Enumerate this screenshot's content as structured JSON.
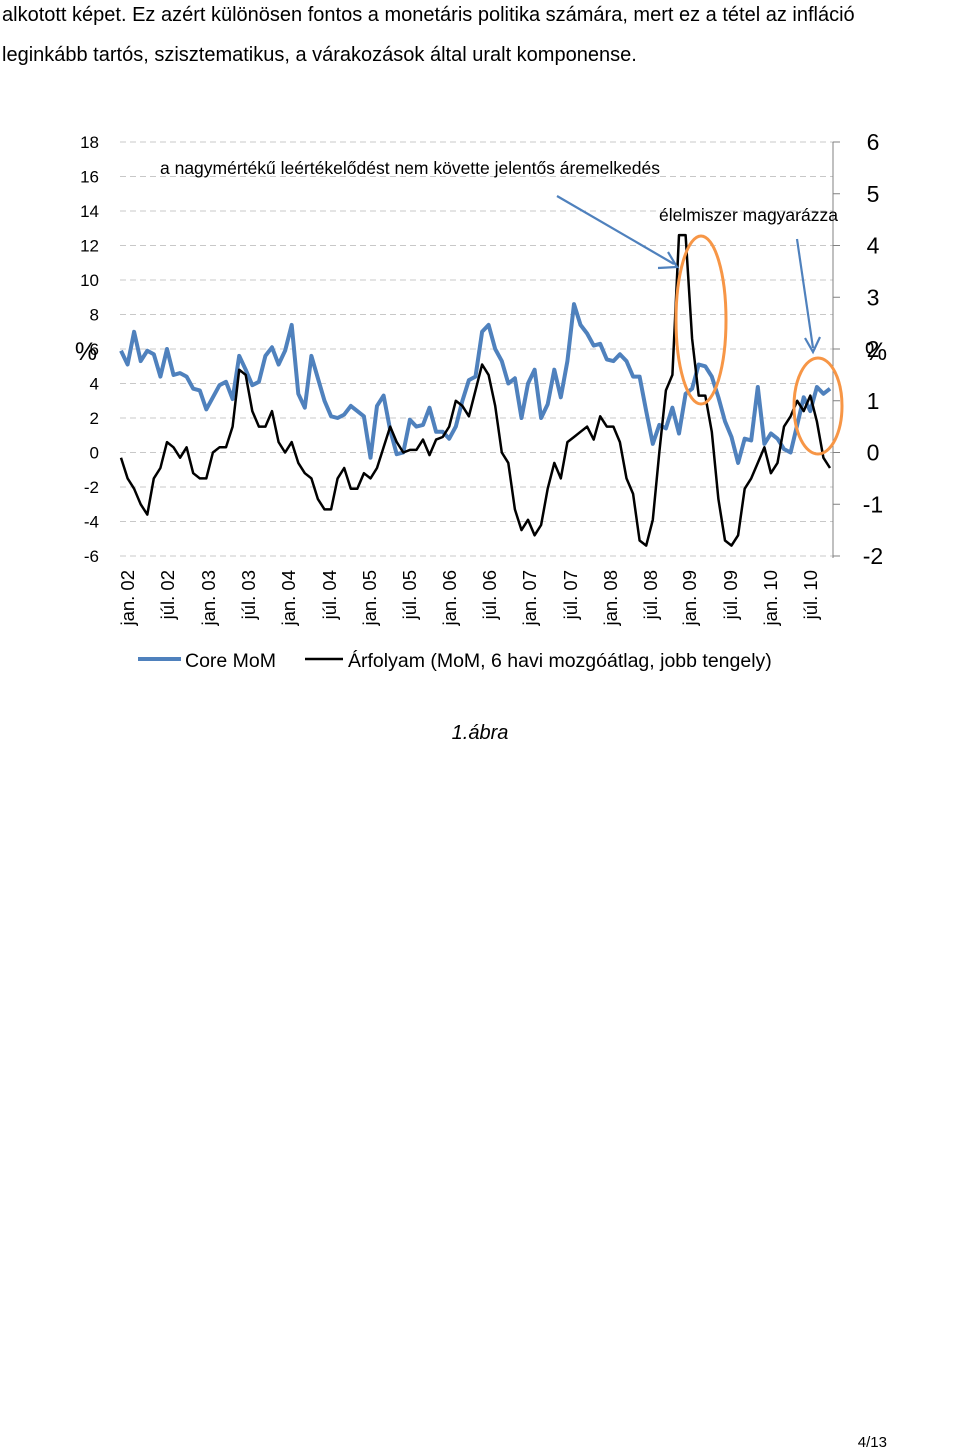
{
  "document": {
    "paragraph_line1": "alkotott képet. Ez azért különösen fontos a monetáris politika számára, mert ez a tétel az infláció",
    "paragraph_line2": "leginkább tartós, szisztematikus, a várakozások által uralt komponense.",
    "figure_caption": "1.ábra",
    "page_number": "4/13"
  },
  "chart_data": {
    "type": "line",
    "title": "",
    "xlabel": "",
    "ylabel_left": "%",
    "ylabel_right": "%",
    "ylim_left": [
      -6,
      18
    ],
    "ylim_right": [
      -2,
      6
    ],
    "yticks_left": [
      "18",
      "16",
      "14",
      "12",
      "10",
      "8",
      "6",
      "4",
      "2",
      "0",
      "-2",
      "-4",
      "-6"
    ],
    "yticks_right": [
      "6",
      "5",
      "4",
      "3",
      "2",
      "1",
      "0",
      "-1",
      "-2"
    ],
    "grid": "horizontal dashed",
    "legend_position": "bottom",
    "x_tick_labels": [
      "jan. 02",
      "júl. 02",
      "jan. 03",
      "júl. 03",
      "jan. 04",
      "júl. 04",
      "jan. 05",
      "júl. 05",
      "jan. 06",
      "júl. 06",
      "jan. 07",
      "júl. 07",
      "jan. 08",
      "júl. 08",
      "jan. 09",
      "júl. 09",
      "jan. 10",
      "júl. 10"
    ],
    "annotations": [
      {
        "text": "a nagymértékű leértékelődést nem követte jelentős áremelkedés",
        "points_to": "jan. 09"
      },
      {
        "text": "élelmiszer magyarázza",
        "points_to": "júl. 10"
      }
    ],
    "series": [
      {
        "name": "Core MoM",
        "axis": "left",
        "color": "#4F81BD",
        "values": [
          5.9,
          5.1,
          7.0,
          5.3,
          5.9,
          5.7,
          4.4,
          6.0,
          4.5,
          4.6,
          4.4,
          3.7,
          3.6,
          2.5,
          3.2,
          3.9,
          4.1,
          3.1,
          5.6,
          4.8,
          3.9,
          4.1,
          5.6,
          6.1,
          5.1,
          5.9,
          7.4,
          3.4,
          2.6,
          5.6,
          4.3,
          3.0,
          2.1,
          2.0,
          2.2,
          2.7,
          2.4,
          2.1,
          -0.3,
          2.7,
          3.3,
          1.3,
          -0.1,
          0.0,
          1.9,
          1.5,
          1.6,
          2.6,
          1.2,
          1.2,
          0.8,
          1.5,
          3.0,
          4.2,
          4.4,
          7.0,
          7.4,
          6.0,
          5.3,
          4.0,
          4.3,
          2.0,
          4.0,
          4.8,
          2.0,
          2.8,
          4.8,
          3.2,
          5.3,
          8.6,
          7.4,
          6.9,
          6.2,
          6.3,
          5.4,
          5.3,
          5.7,
          5.3,
          4.4,
          4.4,
          2.4,
          0.5,
          1.6,
          1.4,
          2.6,
          1.1,
          3.4,
          3.7,
          5.1,
          5.0,
          4.4,
          3.2,
          1.8,
          0.9,
          -0.6,
          0.8,
          0.7,
          3.8,
          0.5,
          1.1,
          0.8,
          0.2,
          0.0,
          1.6,
          3.2,
          2.4,
          3.8,
          3.4,
          3.7
        ]
      },
      {
        "name": "Árfolyam (MoM, 6 havi mozgóátlag, jobb tengely)",
        "axis": "right",
        "color": "#000000",
        "values": [
          -0.1,
          -0.5,
          -0.7,
          -1.0,
          -1.2,
          -0.5,
          -0.3,
          0.2,
          0.1,
          -0.1,
          0.1,
          -0.4,
          -0.5,
          -0.5,
          0.0,
          0.1,
          0.1,
          0.5,
          1.6,
          1.5,
          0.8,
          0.5,
          0.5,
          0.8,
          0.2,
          0.0,
          0.2,
          -0.2,
          -0.4,
          -0.5,
          -0.9,
          -1.1,
          -1.1,
          -0.5,
          -0.3,
          -0.7,
          -0.7,
          -0.4,
          -0.5,
          -0.3,
          0.1,
          0.5,
          0.2,
          0.0,
          0.05,
          0.05,
          0.25,
          -0.05,
          0.25,
          0.3,
          0.5,
          1.0,
          0.9,
          0.7,
          1.2,
          1.7,
          1.5,
          0.9,
          0.0,
          -0.2,
          -1.1,
          -1.5,
          -1.3,
          -1.6,
          -1.4,
          -0.7,
          -0.2,
          -0.5,
          0.2,
          0.3,
          0.4,
          0.5,
          0.25,
          0.7,
          0.5,
          0.5,
          0.2,
          -0.5,
          -0.8,
          -1.7,
          -1.8,
          -1.3,
          0.0,
          1.2,
          1.5,
          4.2,
          4.2,
          2.2,
          1.1,
          1.1,
          0.4,
          -0.9,
          -1.7,
          -1.8,
          -1.6,
          -0.7,
          -0.5,
          -0.2,
          0.1,
          -0.4,
          -0.2,
          0.5,
          0.7,
          1.0,
          0.8,
          1.1,
          0.6,
          -0.1,
          -0.3
        ]
      }
    ]
  }
}
